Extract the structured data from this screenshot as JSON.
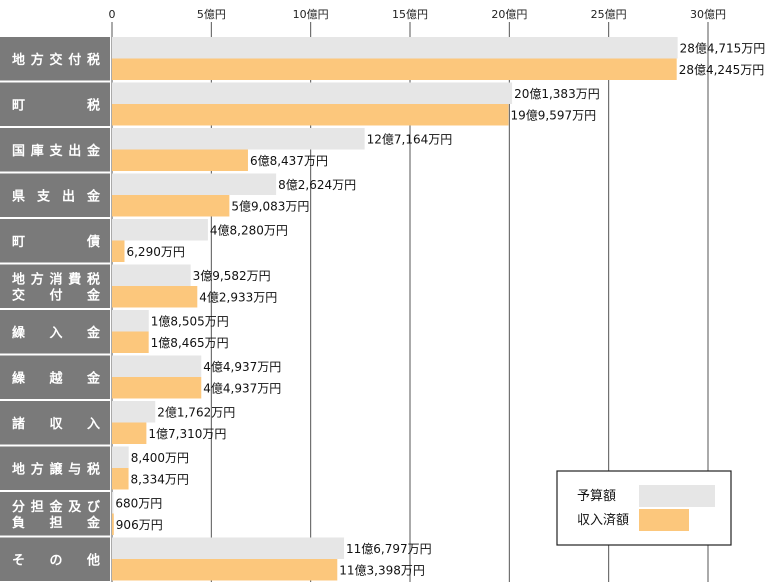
{
  "chart_data": {
    "type": "bar",
    "orientation": "horizontal",
    "unit_note": "values in 万円",
    "x_ticks": [
      "0",
      "5億円",
      "10億円",
      "15億円",
      "20億円",
      "25億円",
      "30億円"
    ],
    "xlim": [
      0,
      300000
    ],
    "grid": true,
    "legend_position": "bottom-right",
    "categories": [
      [
        "地方交付税"
      ],
      [
        "町税"
      ],
      [
        "国庫支出金"
      ],
      [
        "県支出金"
      ],
      [
        "町債"
      ],
      [
        "地方消費税",
        "交付金"
      ],
      [
        "繰入金"
      ],
      [
        "繰越金"
      ],
      [
        "諸収入"
      ],
      [
        "地方譲与税"
      ],
      [
        "分担金及び",
        "負担金"
      ],
      [
        "その他"
      ]
    ],
    "series": [
      {
        "name": "予算額",
        "color": "#e6e6e6",
        "values": [
          284715,
          201383,
          127164,
          82624,
          48280,
          39582,
          18505,
          44937,
          21762,
          8400,
          680,
          116797
        ],
        "labels": [
          "28億4,715万円",
          "20億1,383万円",
          "12億7,164万円",
          "8億2,624万円",
          "4億8,280万円",
          "3億9,582万円",
          "1億8,505万円",
          "4億4,937万円",
          "2億1,762万円",
          "8,400万円",
          "680万円",
          "11億6,797万円"
        ]
      },
      {
        "name": "収入済額",
        "color": "#fcc77c",
        "values": [
          284245,
          199597,
          68437,
          59083,
          6290,
          42933,
          18465,
          44937,
          17310,
          8334,
          906,
          113398
        ],
        "labels": [
          "28億4,245万円",
          "19億9,597万円",
          "6億8,437万円",
          "5億9,083万円",
          "6,290万円",
          "4億2,933万円",
          "1億8,465万円",
          "4億4,937万円",
          "1億7,310万円",
          "8,334万円",
          "906万円",
          "11億3,398万円"
        ]
      }
    ]
  }
}
